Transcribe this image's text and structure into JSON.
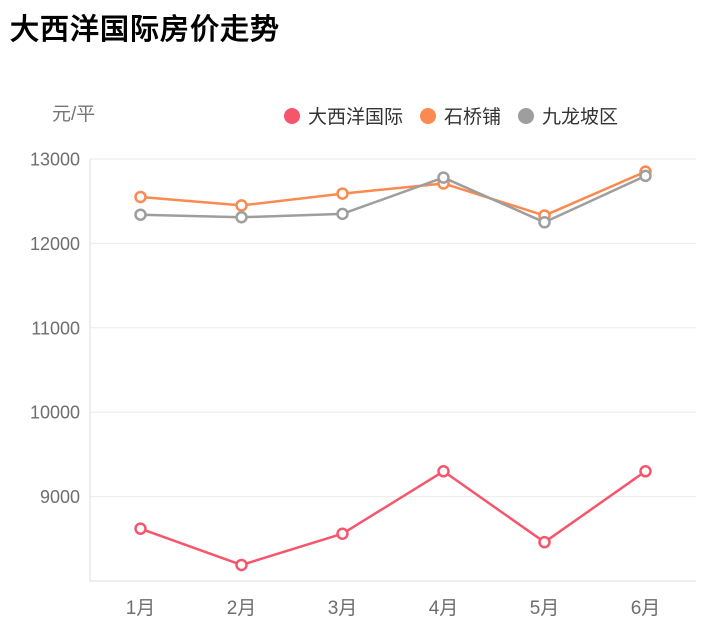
{
  "title": "大西洋国际房价走势",
  "chart_data": {
    "type": "line",
    "title": "大西洋国际房价走势",
    "ylabel": "元/平",
    "xlabel": "",
    "categories": [
      "1月",
      "2月",
      "3月",
      "4月",
      "5月",
      "6月"
    ],
    "yticks": [
      9000,
      10000,
      11000,
      12000,
      13000
    ],
    "ylim": [
      8000,
      13000
    ],
    "grid": true,
    "legend_position": "top",
    "marker": "open-circle",
    "series": [
      {
        "name": "大西洋国际",
        "color": "#F6566C",
        "values": [
          8620,
          8190,
          8560,
          9300,
          8460,
          9300
        ]
      },
      {
        "name": "石桥铺",
        "color": "#FB8A51",
        "values": [
          12550,
          12450,
          12590,
          12710,
          12330,
          12850
        ]
      },
      {
        "name": "九龙坡区",
        "color": "#9E9E9E",
        "values": [
          12340,
          12310,
          12350,
          12780,
          12250,
          12800
        ]
      }
    ],
    "axis_color": "#DDDDDD",
    "grid_color": "#EBEBEB",
    "tick_label_color": "#6E6E6E"
  }
}
